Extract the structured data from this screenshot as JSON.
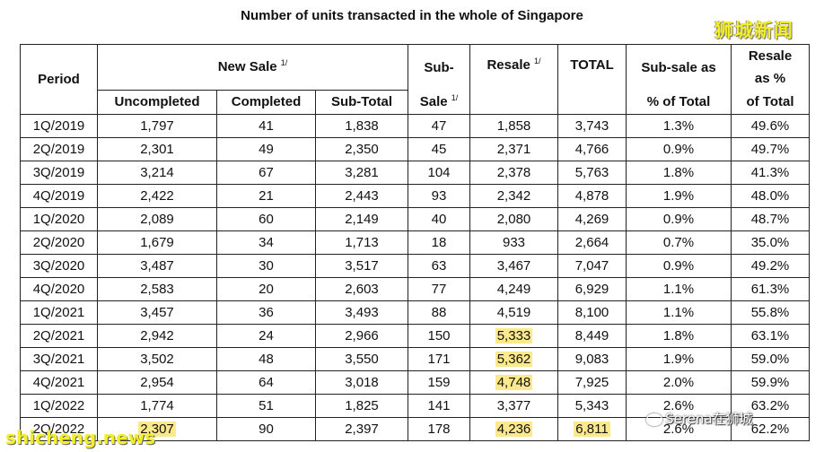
{
  "title": "Number of units transacted in the whole of Singapore",
  "logo_top_right": "狮城新闻",
  "watermark_left": "shicheng.news",
  "watermark_right": "Serena在狮城",
  "footnote_mark": "1/",
  "headers": {
    "period": "Period",
    "new_sale": "New Sale",
    "uncompleted": "Uncompleted",
    "completed": "Completed",
    "subtotal": "Sub-Total",
    "subsale_top": "Sub-",
    "subsale_bottom": "Sale",
    "resale": "Resale",
    "total": "TOTAL",
    "subsale_pct_top": "Sub-sale as",
    "subsale_pct_bottom": "% of Total",
    "resale_pct_top": "Resale",
    "resale_pct_mid": "as %",
    "resale_pct_bottom": "of Total"
  },
  "rows": [
    [
      "1Q/2019",
      "1,797",
      "41",
      "1,838",
      "47",
      "1,858",
      "3,743",
      "1.3%",
      "49.6%"
    ],
    [
      "2Q/2019",
      "2,301",
      "49",
      "2,350",
      "45",
      "2,371",
      "4,766",
      "0.9%",
      "49.7%"
    ],
    [
      "3Q/2019",
      "3,214",
      "67",
      "3,281",
      "104",
      "2,378",
      "5,763",
      "1.8%",
      "41.3%"
    ],
    [
      "4Q/2019",
      "2,422",
      "21",
      "2,443",
      "93",
      "2,342",
      "4,878",
      "1.9%",
      "48.0%"
    ],
    [
      "1Q/2020",
      "2,089",
      "60",
      "2,149",
      "40",
      "2,080",
      "4,269",
      "0.9%",
      "48.7%"
    ],
    [
      "2Q/2020",
      "1,679",
      "34",
      "1,713",
      "18",
      "933",
      "2,664",
      "0.7%",
      "35.0%"
    ],
    [
      "3Q/2020",
      "3,487",
      "30",
      "3,517",
      "63",
      "3,467",
      "7,047",
      "0.9%",
      "49.2%"
    ],
    [
      "4Q/2020",
      "2,583",
      "20",
      "2,603",
      "77",
      "4,249",
      "6,929",
      "1.1%",
      "61.3%"
    ],
    [
      "1Q/2021",
      "3,457",
      "36",
      "3,493",
      "88",
      "4,519",
      "8,100",
      "1.1%",
      "55.8%"
    ],
    [
      "2Q/2021",
      "2,942",
      "24",
      "2,966",
      "150",
      "5,333",
      "8,449",
      "1.8%",
      "63.1%"
    ],
    [
      "3Q/2021",
      "3,502",
      "48",
      "3,550",
      "171",
      "5,362",
      "9,083",
      "1.9%",
      "59.0%"
    ],
    [
      "4Q/2021",
      "2,954",
      "64",
      "3,018",
      "159",
      "4,748",
      "7,925",
      "2.0%",
      "59.9%"
    ],
    [
      "1Q/2022",
      "1,774",
      "51",
      "1,825",
      "141",
      "3,377",
      "5,343",
      "2.6%",
      "63.2%"
    ],
    [
      "2Q/2022",
      "2,307",
      "90",
      "2,397",
      "178",
      "4,236",
      "6,811",
      "2.6%",
      "62.2%"
    ]
  ],
  "highlight_color": "#fbe98c",
  "highlighted_cells": [
    [
      9,
      5
    ],
    [
      10,
      5
    ],
    [
      11,
      5
    ],
    [
      13,
      1
    ],
    [
      13,
      5
    ],
    [
      13,
      6
    ]
  ]
}
